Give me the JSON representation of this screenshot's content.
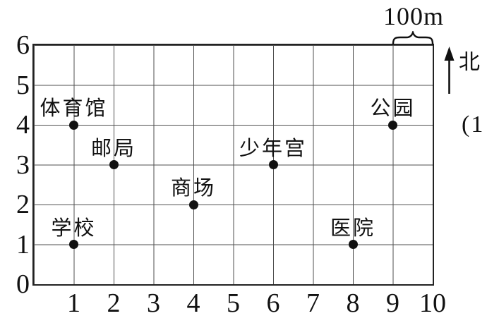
{
  "chart_data": {
    "type": "scatter",
    "title": "",
    "xlabel": "",
    "ylabel": "",
    "xlim": [
      0,
      10
    ],
    "ylim": [
      0,
      6
    ],
    "x_ticks": [
      1,
      2,
      3,
      4,
      5,
      6,
      7,
      8,
      9,
      10
    ],
    "y_ticks": [
      0,
      1,
      2,
      3,
      4,
      5,
      6
    ],
    "grid": true,
    "points": [
      {
        "label": "体育馆",
        "x": 1,
        "y": 4
      },
      {
        "label": "邮局",
        "x": 2,
        "y": 3
      },
      {
        "label": "商场",
        "x": 4,
        "y": 2
      },
      {
        "label": "少年宫",
        "x": 6,
        "y": 3
      },
      {
        "label": "公园",
        "x": 9,
        "y": 4
      },
      {
        "label": "学校",
        "x": 1,
        "y": 1
      },
      {
        "label": "医院",
        "x": 8,
        "y": 1
      }
    ],
    "annotations": {
      "scale_label": "100m",
      "scale_span_cells": 1,
      "north_label": "北",
      "corner_text": "(1"
    },
    "colors": {
      "border": "#222222",
      "grid_line": "#4f4f4f",
      "ink": "#111111",
      "background": "#ffffff"
    }
  }
}
